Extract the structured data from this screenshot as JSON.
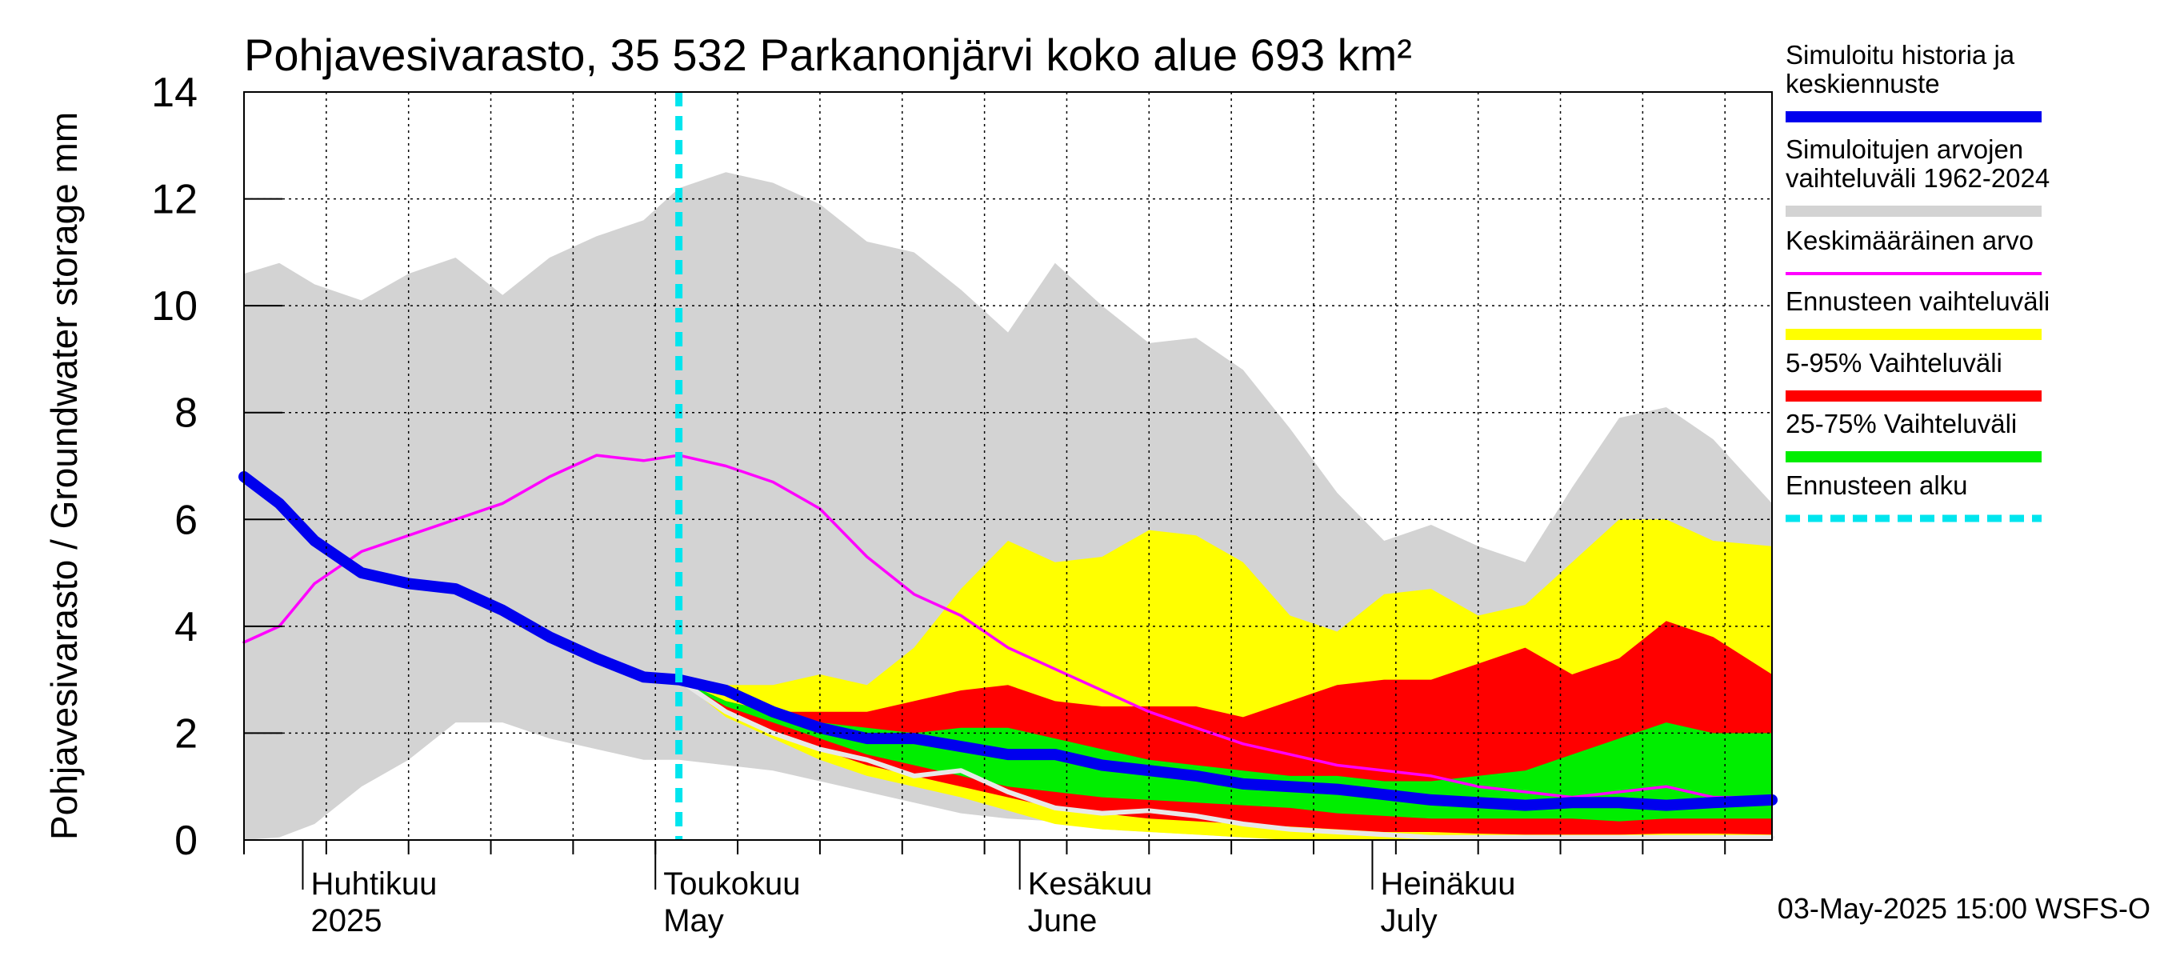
{
  "chart_data": {
    "type": "area",
    "title": "Pohjavesivarasto, 35 532 Parkanonjärvi koko alue 693 km²",
    "ylabel": "Pohjavesivarasto / Groundwater storage   mm",
    "ylim": [
      0,
      14
    ],
    "yticks": [
      0,
      2,
      4,
      6,
      8,
      10,
      12,
      14
    ],
    "xrange": [
      "2025-03-27",
      "2025-08-04"
    ],
    "grid": true,
    "forecast_start": "2025-05-03",
    "timestamp": "03-May-2025 15:00 WSFS-O",
    "month_labels": [
      {
        "fi": "Huhtikuu",
        "en": "2025",
        "date": "2025-04-01"
      },
      {
        "fi": "Toukokuu",
        "en": "May",
        "date": "2025-05-01"
      },
      {
        "fi": "Kesäkuu",
        "en": "June",
        "date": "2025-06-01"
      },
      {
        "fi": "Heinäkuu",
        "en": "July",
        "date": "2025-07-01"
      }
    ],
    "legend": [
      {
        "label": "Simuloitu historia ja keskiennuste",
        "color": "#0000ee",
        "style": "thick"
      },
      {
        "label": "Simuloitujen arvojen vaihteluväli 1962-2024",
        "color": "#d3d3d3",
        "style": "thick"
      },
      {
        "label": "Keskimääräinen arvo",
        "color": "#ff00ff",
        "style": "thin"
      },
      {
        "label": "Ennusteen vaihteluväli",
        "color": "#ffff00",
        "style": "thick"
      },
      {
        "label": "5-95% Vaihteluväli",
        "color": "#ff0000",
        "style": "thick"
      },
      {
        "label": "25-75% Vaihteluväli",
        "color": "#00ee00",
        "style": "thick"
      },
      {
        "label": "Ennusteen alku",
        "color": "#00e5ee",
        "style": "dashed"
      }
    ],
    "series": {
      "history_range": {
        "x": [
          "2025-03-27",
          "2025-03-30",
          "2025-04-02",
          "2025-04-06",
          "2025-04-10",
          "2025-04-14",
          "2025-04-18",
          "2025-04-22",
          "2025-04-26",
          "2025-04-30",
          "2025-05-03",
          "2025-05-07",
          "2025-05-11",
          "2025-05-15",
          "2025-05-19",
          "2025-05-23",
          "2025-05-27",
          "2025-05-31",
          "2025-06-04",
          "2025-06-08",
          "2025-06-12",
          "2025-06-16",
          "2025-06-20",
          "2025-06-24",
          "2025-06-28",
          "2025-07-02",
          "2025-07-06",
          "2025-07-10",
          "2025-07-14",
          "2025-07-18",
          "2025-07-22",
          "2025-07-26",
          "2025-07-30",
          "2025-08-04"
        ],
        "upper": [
          10.6,
          10.8,
          10.4,
          10.1,
          10.6,
          10.9,
          10.2,
          10.9,
          11.3,
          11.6,
          12.2,
          12.5,
          12.3,
          11.9,
          11.2,
          11.0,
          10.3,
          9.5,
          10.8,
          10.0,
          9.3,
          9.4,
          8.8,
          7.7,
          6.5,
          5.6,
          5.9,
          5.5,
          5.2,
          6.6,
          7.9,
          8.1,
          7.5,
          6.3
        ],
        "lower": [
          0.0,
          0.05,
          0.3,
          1.0,
          1.5,
          2.2,
          2.2,
          1.9,
          1.7,
          1.5,
          1.5,
          1.4,
          1.3,
          1.1,
          0.9,
          0.7,
          0.5,
          0.4,
          0.35,
          0.2,
          0.15,
          0.1,
          0.05,
          0.05,
          0.05,
          0.05,
          0.05,
          0.05,
          0.05,
          0.05,
          0.05,
          0.05,
          0.05,
          0.05
        ]
      },
      "forecast_range": {
        "x": [
          "2025-05-03",
          "2025-05-07",
          "2025-05-11",
          "2025-05-15",
          "2025-05-19",
          "2025-05-23",
          "2025-05-27",
          "2025-05-31",
          "2025-06-04",
          "2025-06-08",
          "2025-06-12",
          "2025-06-16",
          "2025-06-20",
          "2025-06-24",
          "2025-06-28",
          "2025-07-02",
          "2025-07-06",
          "2025-07-10",
          "2025-07-14",
          "2025-07-18",
          "2025-07-22",
          "2025-07-26",
          "2025-07-30",
          "2025-08-04"
        ],
        "upper": [
          3.0,
          2.9,
          2.9,
          3.1,
          2.9,
          3.6,
          4.7,
          5.6,
          5.2,
          5.3,
          5.8,
          5.7,
          5.2,
          4.2,
          3.9,
          4.6,
          4.7,
          4.2,
          4.4,
          5.2,
          6.0,
          6.0,
          5.6,
          5.5
        ],
        "lower": [
          3.0,
          2.3,
          1.9,
          1.5,
          1.2,
          1.0,
          0.8,
          0.55,
          0.3,
          0.2,
          0.15,
          0.1,
          0.05,
          0.0,
          0.0,
          0.0,
          0.0,
          0.0,
          0.0,
          0.0,
          0.0,
          0.0,
          0.0,
          0.0
        ]
      },
      "p5_95": {
        "x": [
          "2025-05-03",
          "2025-05-07",
          "2025-05-11",
          "2025-05-15",
          "2025-05-19",
          "2025-05-23",
          "2025-05-27",
          "2025-05-31",
          "2025-06-04",
          "2025-06-08",
          "2025-06-12",
          "2025-06-16",
          "2025-06-20",
          "2025-06-24",
          "2025-06-28",
          "2025-07-02",
          "2025-07-06",
          "2025-07-10",
          "2025-07-14",
          "2025-07-18",
          "2025-07-22",
          "2025-07-26",
          "2025-07-30",
          "2025-08-04"
        ],
        "upper": [
          3.0,
          2.6,
          2.4,
          2.4,
          2.4,
          2.6,
          2.8,
          2.9,
          2.6,
          2.5,
          2.5,
          2.5,
          2.3,
          2.6,
          2.9,
          3.0,
          3.0,
          3.3,
          3.6,
          3.1,
          3.4,
          4.1,
          3.8,
          3.1
        ],
        "lower": [
          3.0,
          2.4,
          2.0,
          1.7,
          1.4,
          1.2,
          1.0,
          0.8,
          0.6,
          0.5,
          0.4,
          0.35,
          0.3,
          0.25,
          0.2,
          0.15,
          0.15,
          0.12,
          0.1,
          0.1,
          0.1,
          0.12,
          0.12,
          0.1
        ]
      },
      "p25_75": {
        "x": [
          "2025-05-03",
          "2025-05-07",
          "2025-05-11",
          "2025-05-15",
          "2025-05-19",
          "2025-05-23",
          "2025-05-27",
          "2025-05-31",
          "2025-06-04",
          "2025-06-08",
          "2025-06-12",
          "2025-06-16",
          "2025-06-20",
          "2025-06-24",
          "2025-06-28",
          "2025-07-02",
          "2025-07-06",
          "2025-07-10",
          "2025-07-14",
          "2025-07-18",
          "2025-07-22",
          "2025-07-26",
          "2025-07-30",
          "2025-08-04"
        ],
        "upper": [
          3.0,
          2.6,
          2.4,
          2.2,
          2.1,
          2.0,
          2.1,
          2.1,
          1.9,
          1.7,
          1.5,
          1.4,
          1.3,
          1.2,
          1.2,
          1.1,
          1.1,
          1.2,
          1.3,
          1.6,
          1.9,
          2.2,
          2.0,
          2.0
        ],
        "lower": [
          3.0,
          2.5,
          2.2,
          1.9,
          1.6,
          1.4,
          1.2,
          1.0,
          0.9,
          0.8,
          0.75,
          0.7,
          0.65,
          0.6,
          0.5,
          0.45,
          0.4,
          0.4,
          0.4,
          0.4,
          0.35,
          0.4,
          0.4,
          0.4
        ]
      },
      "mean": {
        "x": [
          "2025-03-27",
          "2025-03-30",
          "2025-04-02",
          "2025-04-06",
          "2025-04-10",
          "2025-04-14",
          "2025-04-18",
          "2025-04-22",
          "2025-04-26",
          "2025-04-30",
          "2025-05-03",
          "2025-05-07",
          "2025-05-11",
          "2025-05-15",
          "2025-05-19",
          "2025-05-23",
          "2025-05-27",
          "2025-05-31",
          "2025-06-04",
          "2025-06-08",
          "2025-06-12",
          "2025-06-16",
          "2025-06-20",
          "2025-06-24",
          "2025-06-28",
          "2025-07-02",
          "2025-07-06",
          "2025-07-10",
          "2025-07-14",
          "2025-07-18",
          "2025-07-22",
          "2025-07-26",
          "2025-07-30",
          "2025-08-04"
        ],
        "values": [
          3.7,
          4.0,
          4.8,
          5.4,
          5.7,
          6.0,
          6.3,
          6.8,
          7.2,
          7.1,
          7.2,
          7.0,
          6.7,
          6.2,
          5.3,
          4.6,
          4.2,
          3.6,
          3.2,
          2.8,
          2.4,
          2.1,
          1.8,
          1.6,
          1.4,
          1.3,
          1.2,
          1.0,
          0.9,
          0.8,
          0.9,
          1.0,
          0.8,
          0.8
        ]
      },
      "simulated": {
        "x": [
          "2025-03-27",
          "2025-03-30",
          "2025-04-02",
          "2025-04-06",
          "2025-04-10",
          "2025-04-14",
          "2025-04-18",
          "2025-04-22",
          "2025-04-26",
          "2025-04-30",
          "2025-05-03",
          "2025-05-07",
          "2025-05-11",
          "2025-05-15",
          "2025-05-19",
          "2025-05-23",
          "2025-05-27",
          "2025-05-31",
          "2025-06-04",
          "2025-06-08",
          "2025-06-12",
          "2025-06-16",
          "2025-06-20",
          "2025-06-24",
          "2025-06-28",
          "2025-07-02",
          "2025-07-06",
          "2025-07-10",
          "2025-07-14",
          "2025-07-18",
          "2025-07-22",
          "2025-07-26",
          "2025-07-30",
          "2025-08-04"
        ],
        "values": [
          6.8,
          6.3,
          5.6,
          5.0,
          4.8,
          4.7,
          4.3,
          3.8,
          3.4,
          3.05,
          3.0,
          2.8,
          2.4,
          2.1,
          1.9,
          1.9,
          1.75,
          1.6,
          1.6,
          1.4,
          1.3,
          1.2,
          1.05,
          1.0,
          0.95,
          0.85,
          0.75,
          0.7,
          0.65,
          0.7,
          0.7,
          0.65,
          0.7,
          0.75
        ]
      },
      "lowest": {
        "x": [
          "2025-05-03",
          "2025-05-07",
          "2025-05-11",
          "2025-05-15",
          "2025-05-19",
          "2025-05-23",
          "2025-05-27",
          "2025-05-31",
          "2025-06-04",
          "2025-06-08",
          "2025-06-12",
          "2025-06-16",
          "2025-06-20",
          "2025-06-24",
          "2025-06-28",
          "2025-07-02",
          "2025-07-06",
          "2025-07-10",
          "2025-07-14",
          "2025-07-18",
          "2025-07-22",
          "2025-07-26",
          "2025-07-30",
          "2025-08-04"
        ],
        "values": [
          3.0,
          2.4,
          2.0,
          1.7,
          1.5,
          1.2,
          1.3,
          0.9,
          0.6,
          0.5,
          0.55,
          0.45,
          0.3,
          0.2,
          0.15,
          0.1,
          0.05,
          0.05,
          0.05,
          0.05,
          0.05,
          0.05,
          0.05,
          0.05
        ]
      }
    }
  }
}
